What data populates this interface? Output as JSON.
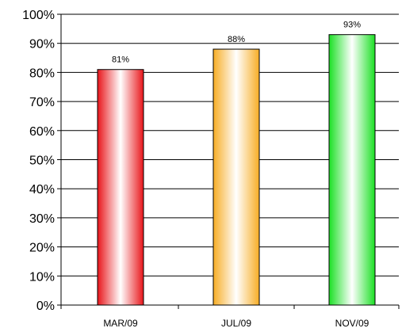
{
  "chart_data": {
    "type": "bar",
    "categories": [
      "MAR/09",
      "JUL/09",
      "NOV/09"
    ],
    "values": [
      81,
      88,
      93
    ],
    "data_labels": [
      "81%",
      "88%",
      "93%"
    ],
    "ylim": [
      0,
      100
    ],
    "y_ticks": [
      0,
      10,
      20,
      30,
      40,
      50,
      60,
      70,
      80,
      90,
      100
    ],
    "y_tick_labels": [
      "0%",
      "10%",
      "20%",
      "30%",
      "40%",
      "50%",
      "60%",
      "70%",
      "80%",
      "90%",
      "100%"
    ],
    "grid": true,
    "legend": "none",
    "bar_colors": [
      "#e8151a",
      "#f7ad25",
      "#1be024"
    ],
    "title": "",
    "xlabel": "",
    "ylabel": ""
  }
}
